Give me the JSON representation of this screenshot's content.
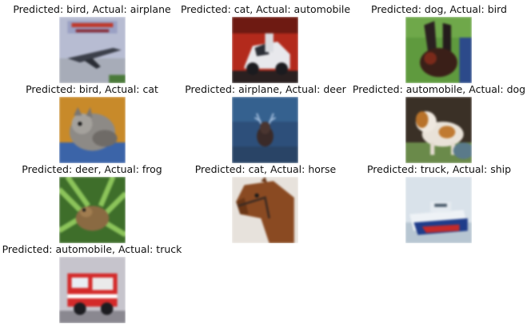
{
  "figure": {
    "items": [
      {
        "title": "Predicted: bird, Actual: airplane",
        "predicted": "bird",
        "actual": "airplane"
      },
      {
        "title": "Predicted: cat, Actual: automobile",
        "predicted": "cat",
        "actual": "automobile"
      },
      {
        "title": "Predicted: dog, Actual: bird",
        "predicted": "dog",
        "actual": "bird"
      },
      {
        "title": "Predicted: bird, Actual: cat",
        "predicted": "bird",
        "actual": "cat"
      },
      {
        "title": "Predicted: airplane, Actual: deer",
        "predicted": "airplane",
        "actual": "deer"
      },
      {
        "title": "Predicted: automobile, Actual: dog",
        "predicted": "automobile",
        "actual": "dog"
      },
      {
        "title": "Predicted: deer, Actual: frog",
        "predicted": "deer",
        "actual": "frog"
      },
      {
        "title": "Predicted: cat, Actual: horse",
        "predicted": "cat",
        "actual": "horse"
      },
      {
        "title": "Predicted: truck, Actual: ship",
        "predicted": "truck",
        "actual": "ship"
      },
      {
        "title": "Predicted: automobile, Actual: truck",
        "predicted": "automobile",
        "actual": "truck"
      }
    ]
  }
}
